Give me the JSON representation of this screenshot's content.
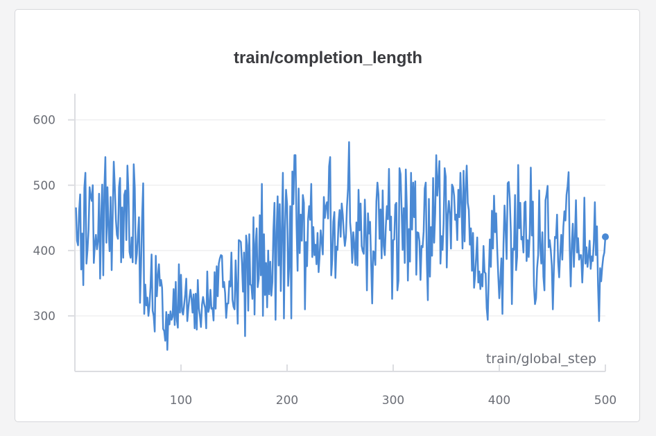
{
  "chart_data": {
    "type": "line",
    "title": "train/completion_length",
    "xlabel": "train/global_step",
    "ylabel": "",
    "xlim": [
      0,
      500
    ],
    "ylim": [
      215,
      640
    ],
    "xticks": [
      100,
      200,
      300,
      400,
      500
    ],
    "yticks": [
      300,
      400,
      500,
      600
    ],
    "grid": true,
    "line_color": "#4a89d4",
    "series": [
      {
        "values": [
          466,
          415,
          408,
          460,
          486,
          371,
          426,
          347,
          496,
          519,
          380,
          401,
          432,
          497,
          483,
          476,
          500,
          381,
          409,
          424,
          402,
          415,
          487,
          357,
          451,
          501,
          362,
          492,
          543,
          412,
          497,
          437,
          399,
          482,
          370,
          455,
          536,
          497,
          448,
          424,
          418,
          497,
          511,
          382,
          466,
          389,
          485,
          492,
          416,
          530,
          488,
          398,
          389,
          420,
          382,
          532,
          496,
          380,
          395,
          424,
          451,
          320,
          379,
          452,
          503,
          303,
          348,
          316,
          328,
          300,
          316,
          345,
          394,
          308,
          300,
          276,
          392,
          330,
          361,
          379,
          346,
          355,
          343,
          280,
          277,
          262,
          306,
          248,
          302,
          287,
          307,
          294,
          299,
          341,
          286,
          352,
          294,
          282,
          379,
          305,
          363,
          307,
          302,
          317,
          333,
          357,
          292,
          312,
          327,
          340,
          327,
          305,
          333,
          281,
          334,
          279,
          355,
          312,
          300,
          283,
          317,
          329,
          319,
          312,
          281,
          368,
          306,
          313,
          340,
          311,
          312,
          293,
          367,
          311,
          376,
          330,
          380,
          388,
          393,
          392,
          344,
          352,
          335,
          297,
          319,
          319,
          353,
          345,
          397,
          325,
          314,
          310,
          385,
          342,
          288,
          416,
          415,
          413,
          382,
          337,
          397,
          269,
          423,
          408,
          308,
          425,
          348,
          347,
          326,
          451,
          302,
          410,
          434,
          344,
          357,
          454,
          362,
          502,
          300,
          425,
          332,
          381,
          313,
          400,
          333,
          383,
          331,
          352,
          432,
          473,
          294,
          427,
          483,
          377,
          471,
          338,
          433,
          519,
          296,
          433,
          493,
          471,
          346,
          378,
          468,
          296,
          521,
          471,
          546,
          546,
          439,
          369,
          495,
          396,
          455,
          415,
          485,
          473,
          310,
          413,
          376,
          448,
          468,
          447,
          502,
          390,
          436,
          393,
          409,
          379,
          427,
          367,
          393,
          431,
          414,
          394,
          482,
          450,
          468,
          474,
          449,
          529,
          543,
          362,
          386,
          444,
          459,
          358,
          406,
          401,
          443,
          462,
          421,
          472,
          455,
          426,
          407,
          421,
          467,
          495,
          566,
          443,
          424,
          381,
          428,
          409,
          378,
          443,
          377,
          493,
          431,
          472,
          407,
          399,
          395,
          478,
          423,
          339,
          457,
          426,
          444,
          382,
          319,
          399,
          397,
          378,
          475,
          504,
          486,
          418,
          463,
          388,
          492,
          407,
          393,
          437,
          468,
          448,
          525,
          431,
          452,
          326,
          416,
          417,
          470,
          473,
          339,
          354,
          526,
          517,
          464,
          401,
          465,
          381,
          524,
          465,
          354,
          433,
          383,
          519,
          432,
          504,
          451,
          506,
          363,
          428,
          427,
          414,
          355,
          407,
          405,
          429,
          495,
          504,
          386,
          324,
          479,
          360,
          436,
          392,
          511,
          412,
          457,
          546,
          484,
          508,
          537,
          380,
          422,
          401,
          441,
          526,
          513,
          374,
          454,
          476,
          457,
          403,
          501,
          497,
          484,
          447,
          455,
          416,
          493,
          451,
          519,
          472,
          403,
          522,
          414,
          494,
          530,
          473,
          462,
          409,
          434,
          369,
          427,
          343,
          362,
          391,
          420,
          351,
          368,
          341,
          364,
          345,
          407,
          367,
          365,
          312,
          294,
          362,
          417,
          375,
          461,
          403,
          484,
          428,
          457,
          404,
          362,
          327,
          356,
          388,
          303,
          410,
          469,
          433,
          387,
          503,
          505,
          479,
          429,
          318,
          403,
          401,
          485,
          370,
          391,
          531,
          434,
          473,
          417,
          421,
          397,
          473,
          475,
          384,
          416,
          390,
          426,
          527,
          423,
          475,
          346,
          318,
          327,
          373,
          393,
          492,
          404,
          380,
          428,
          360,
          339,
          477,
          486,
          499,
          405,
          416,
          401,
          377,
          310,
          373,
          421,
          419,
          455,
          383,
          359,
          396,
          424,
          386,
          436,
          460,
          446,
          485,
          498,
          520,
          406,
          345,
          409,
          441,
          375,
          418,
          477,
          397,
          419,
          386,
          393,
          393,
          351,
          390,
          481,
          380,
          405,
          375,
          391,
          415,
          372,
          391,
          384,
          413,
          474,
          393,
          437,
          347,
          292,
          373,
          353,
          375,
          390,
          397,
          421
        ]
      }
    ]
  }
}
